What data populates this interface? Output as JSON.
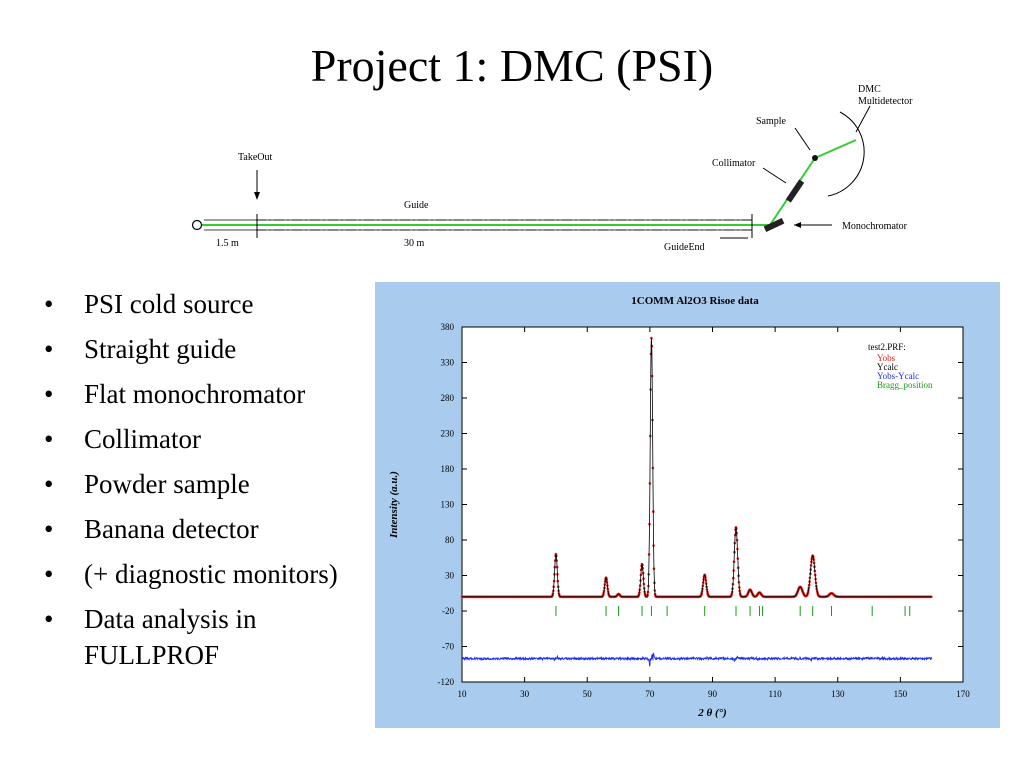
{
  "slide": {
    "title": "Project 1: DMC (PSI)",
    "bullets": [
      "PSI cold source",
      "Straight guide",
      "Flat monochromator",
      "Collimator",
      "Powder sample",
      "Banana detector",
      "(+ diagnostic monitors)",
      "Data analysis in FULLPROF"
    ]
  },
  "schematic": {
    "labels": {
      "takeout": "TakeOut",
      "guide": "Guide",
      "guide_end": "GuideEnd",
      "collimator": "Collimator",
      "sample": "Sample",
      "monochromator": "Monochromator",
      "detector_line1": "DMC",
      "detector_line2": "Multidetector",
      "dist_first": "1.5 m",
      "dist_guide": "30 m"
    },
    "colors": {
      "beam": "#33cc33",
      "lines": "#000000"
    }
  },
  "chart_data": {
    "type": "line",
    "title": "1COMM Al2O3 Risoe data",
    "xlabel": "2 θ  (°)",
    "ylabel": "Intensity (a.u.)",
    "xlim": [
      10,
      170
    ],
    "ylim": [
      -120,
      380
    ],
    "xticks": [
      10,
      30,
      50,
      70,
      90,
      110,
      130,
      150,
      170
    ],
    "yticks": [
      -120,
      -70,
      -20,
      30,
      80,
      130,
      180,
      230,
      280,
      330,
      380
    ],
    "x_range_data": [
      10,
      160
    ],
    "background": 0,
    "difference_offset": -87,
    "peaks": [
      {
        "x": 40.0,
        "h": 60,
        "w": 0.6
      },
      {
        "x": 56.0,
        "h": 27,
        "w": 0.6
      },
      {
        "x": 60.0,
        "h": 4,
        "w": 0.6
      },
      {
        "x": 67.5,
        "h": 46,
        "w": 0.6
      },
      {
        "x": 70.5,
        "h": 365,
        "w": 0.55
      },
      {
        "x": 87.5,
        "h": 31,
        "w": 0.7
      },
      {
        "x": 97.5,
        "h": 98,
        "w": 0.75
      },
      {
        "x": 102.0,
        "h": 10,
        "w": 0.8
      },
      {
        "x": 105.0,
        "h": 6,
        "w": 0.8
      },
      {
        "x": 118.0,
        "h": 14,
        "w": 1.0
      },
      {
        "x": 122.0,
        "h": 58,
        "w": 1.0
      },
      {
        "x": 128.0,
        "h": 5,
        "w": 1.0
      }
    ],
    "bragg_positions": [
      40.0,
      56.0,
      60.0,
      67.5,
      70.5,
      75.5,
      87.5,
      97.5,
      102.0,
      105.0,
      106.0,
      118.0,
      122.0,
      128.0,
      141.0,
      151.5,
      153.0
    ],
    "bragg_y": -20,
    "legend": {
      "file": "test2.PRF:",
      "placement": "top-right",
      "entries": [
        {
          "name": "Yobs",
          "color": "#e8201a"
        },
        {
          "name": "Ycalc",
          "color": "#000000"
        },
        {
          "name": "Yobs-Ycalc",
          "color": "#1a2ee8"
        },
        {
          "name": "Bragg_position",
          "color": "#1a9a1a"
        }
      ]
    },
    "colors": {
      "panel": "#a9cbee",
      "plot_bg": "#ffffff",
      "obs": "#e8201a",
      "calc": "#000000",
      "diff": "#1a2ee8",
      "bragg": "#1a9a1a"
    }
  }
}
